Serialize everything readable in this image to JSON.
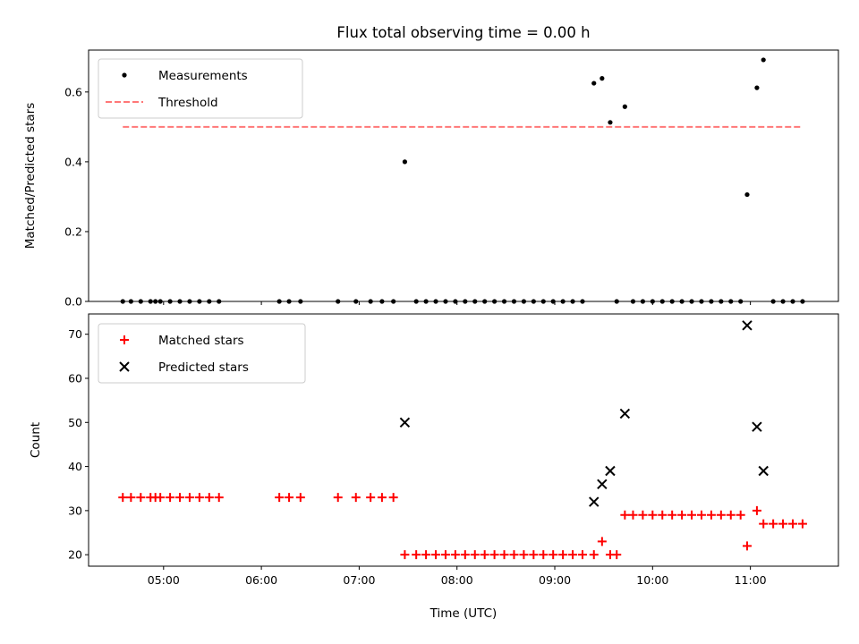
{
  "figure": {
    "title": "Flux total observing time = 0.00 h"
  },
  "chart_data": [
    {
      "type": "scatter",
      "ylabel": "Matched/Predicted stars",
      "xlabel": "",
      "ylim": [
        0,
        0.72
      ],
      "yticks": [
        0.0,
        0.2,
        0.4,
        0.6
      ],
      "ytick_labels": [
        "0.0",
        "0.2",
        "0.4",
        "0.6"
      ],
      "xlim": [
        "04:14",
        "11:54"
      ],
      "grid": false,
      "legend": {
        "placement": "top-left",
        "entries": [
          "Measurements",
          "Threshold"
        ]
      },
      "series": [
        {
          "name": "Measurements",
          "marker": "dot",
          "color": "#000000",
          "points": [
            [
              "04:35",
              0
            ],
            [
              "04:40",
              0
            ],
            [
              "04:46",
              0
            ],
            [
              "04:52",
              0
            ],
            [
              "04:55",
              0
            ],
            [
              "04:58",
              0
            ],
            [
              "05:04",
              0
            ],
            [
              "05:10",
              0
            ],
            [
              "05:16",
              0
            ],
            [
              "05:22",
              0
            ],
            [
              "05:28",
              0
            ],
            [
              "05:34",
              0
            ],
            [
              "06:11",
              0
            ],
            [
              "06:17",
              0
            ],
            [
              "06:24",
              0
            ],
            [
              "06:47",
              0
            ],
            [
              "06:58",
              0
            ],
            [
              "07:07",
              0
            ],
            [
              "07:14",
              0
            ],
            [
              "07:21",
              0
            ],
            [
              "07:28",
              0.4
            ],
            [
              "07:35",
              0
            ],
            [
              "07:41",
              0
            ],
            [
              "07:47",
              0
            ],
            [
              "07:53",
              0
            ],
            [
              "07:59",
              0
            ],
            [
              "08:05",
              0
            ],
            [
              "08:11",
              0
            ],
            [
              "08:17",
              0
            ],
            [
              "08:23",
              0
            ],
            [
              "08:29",
              0
            ],
            [
              "08:35",
              0
            ],
            [
              "08:41",
              0
            ],
            [
              "08:47",
              0
            ],
            [
              "08:53",
              0
            ],
            [
              "08:59",
              0
            ],
            [
              "09:05",
              0
            ],
            [
              "09:11",
              0
            ],
            [
              "09:17",
              0
            ],
            [
              "09:24",
              0.625
            ],
            [
              "09:29",
              0.639
            ],
            [
              "09:34",
              0.513
            ],
            [
              "09:38",
              0
            ],
            [
              "09:43",
              0.558
            ],
            [
              "09:48",
              0
            ],
            [
              "09:54",
              0
            ],
            [
              "10:00",
              0
            ],
            [
              "10:06",
              0
            ],
            [
              "10:12",
              0
            ],
            [
              "10:18",
              0
            ],
            [
              "10:24",
              0
            ],
            [
              "10:30",
              0
            ],
            [
              "10:36",
              0
            ],
            [
              "10:42",
              0
            ],
            [
              "10:48",
              0
            ],
            [
              "10:54",
              0
            ],
            [
              "10:58",
              0.306
            ],
            [
              "11:04",
              0.612
            ],
            [
              "11:08",
              0.692
            ],
            [
              "11:14",
              0
            ],
            [
              "11:20",
              0
            ],
            [
              "11:26",
              0
            ],
            [
              "11:32",
              0
            ]
          ]
        },
        {
          "name": "Threshold",
          "style": "dashed",
          "color": "#ff7777",
          "points": [
            [
              "04:35",
              0.5
            ],
            [
              "11:32",
              0.5
            ]
          ]
        }
      ]
    },
    {
      "type": "scatter",
      "ylabel": "Count",
      "xlabel": "Time (UTC)",
      "ylim": [
        17.4,
        74.6
      ],
      "yticks": [
        20,
        30,
        40,
        50,
        60,
        70
      ],
      "ytick_labels": [
        "20",
        "30",
        "40",
        "50",
        "60",
        "70"
      ],
      "xlim": [
        "04:14",
        "11:54"
      ],
      "xticks": [
        "05:00",
        "06:00",
        "07:00",
        "08:00",
        "09:00",
        "10:00",
        "11:00"
      ],
      "xtick_labels": [
        "05:00",
        "06:00",
        "07:00",
        "08:00",
        "09:00",
        "10:00",
        "11:00"
      ],
      "grid": false,
      "legend": {
        "placement": "top-left",
        "entries": [
          "Matched stars",
          "Predicted stars"
        ]
      },
      "series": [
        {
          "name": "Matched stars",
          "marker": "plus",
          "color": "#ff0000",
          "points": [
            [
              "04:35",
              33
            ],
            [
              "04:40",
              33
            ],
            [
              "04:46",
              33
            ],
            [
              "04:52",
              33
            ],
            [
              "04:55",
              33
            ],
            [
              "04:58",
              33
            ],
            [
              "05:04",
              33
            ],
            [
              "05:10",
              33
            ],
            [
              "05:16",
              33
            ],
            [
              "05:22",
              33
            ],
            [
              "05:28",
              33
            ],
            [
              "05:34",
              33
            ],
            [
              "06:11",
              33
            ],
            [
              "06:17",
              33
            ],
            [
              "06:24",
              33
            ],
            [
              "06:47",
              33
            ],
            [
              "06:58",
              33
            ],
            [
              "07:07",
              33
            ],
            [
              "07:14",
              33
            ],
            [
              "07:21",
              33
            ],
            [
              "07:28",
              20
            ],
            [
              "07:35",
              20
            ],
            [
              "07:41",
              20
            ],
            [
              "07:47",
              20
            ],
            [
              "07:53",
              20
            ],
            [
              "07:59",
              20
            ],
            [
              "08:05",
              20
            ],
            [
              "08:11",
              20
            ],
            [
              "08:17",
              20
            ],
            [
              "08:23",
              20
            ],
            [
              "08:29",
              20
            ],
            [
              "08:35",
              20
            ],
            [
              "08:41",
              20
            ],
            [
              "08:47",
              20
            ],
            [
              "08:53",
              20
            ],
            [
              "08:59",
              20
            ],
            [
              "09:05",
              20
            ],
            [
              "09:11",
              20
            ],
            [
              "09:17",
              20
            ],
            [
              "09:24",
              20
            ],
            [
              "09:29",
              23
            ],
            [
              "09:34",
              20
            ],
            [
              "09:38",
              20
            ],
            [
              "09:43",
              29
            ],
            [
              "09:48",
              29
            ],
            [
              "09:54",
              29
            ],
            [
              "10:00",
              29
            ],
            [
              "10:06",
              29
            ],
            [
              "10:12",
              29
            ],
            [
              "10:18",
              29
            ],
            [
              "10:24",
              29
            ],
            [
              "10:30",
              29
            ],
            [
              "10:36",
              29
            ],
            [
              "10:42",
              29
            ],
            [
              "10:48",
              29
            ],
            [
              "10:54",
              29
            ],
            [
              "10:58",
              22
            ],
            [
              "11:04",
              30
            ],
            [
              "11:08",
              27
            ],
            [
              "11:14",
              27
            ],
            [
              "11:20",
              27
            ],
            [
              "11:26",
              27
            ],
            [
              "11:32",
              27
            ]
          ]
        },
        {
          "name": "Predicted stars",
          "marker": "x",
          "color": "#000000",
          "points": [
            [
              "07:28",
              50
            ],
            [
              "09:24",
              32
            ],
            [
              "09:29",
              36
            ],
            [
              "09:34",
              39
            ],
            [
              "09:43",
              52
            ],
            [
              "10:58",
              72
            ],
            [
              "11:04",
              49
            ],
            [
              "11:08",
              39
            ]
          ]
        }
      ]
    }
  ]
}
